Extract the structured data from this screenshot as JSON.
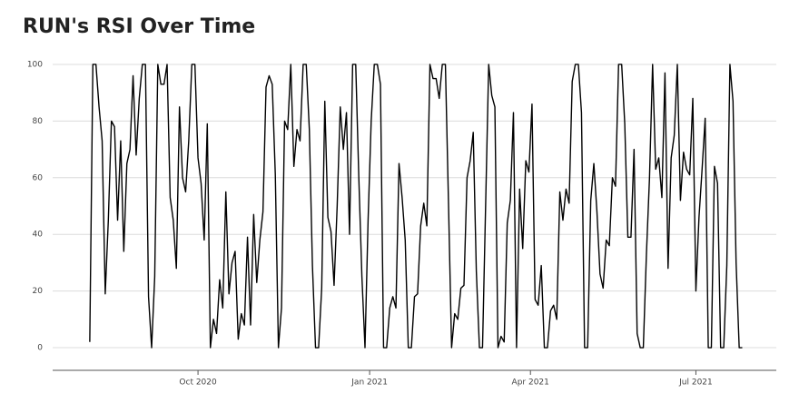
{
  "chart_data": {
    "type": "line",
    "title": "RUN's RSI Over Time",
    "values": [
      2,
      100,
      100,
      85,
      73,
      19,
      45,
      80,
      78,
      45,
      73,
      34,
      65,
      70,
      96,
      68,
      88,
      100,
      100,
      18,
      0,
      25,
      100,
      93,
      93,
      100,
      53,
      45,
      28,
      85,
      60,
      55,
      73,
      100,
      100,
      67,
      58,
      38,
      79,
      0,
      10,
      5,
      24,
      14,
      55,
      19,
      30,
      34,
      3,
      12,
      8,
      39,
      8,
      47,
      23,
      38,
      48,
      92,
      96,
      93,
      61,
      0,
      14,
      80,
      77,
      100,
      64,
      77,
      73,
      100,
      100,
      77,
      29,
      0,
      0,
      21,
      87,
      46,
      41,
      22,
      50,
      85,
      70,
      83,
      40,
      100,
      100,
      60,
      25,
      0,
      45,
      80,
      100,
      100,
      93,
      0,
      0,
      14,
      18,
      14,
      65,
      53,
      38,
      0,
      0,
      18,
      19,
      43,
      51,
      43,
      100,
      95,
      95,
      88,
      100,
      100,
      51,
      0,
      12,
      10,
      21,
      22,
      60,
      66,
      76,
      27,
      0,
      0,
      50,
      100,
      89,
      85,
      0,
      4,
      2,
      44,
      52,
      83,
      0,
      56,
      35,
      66,
      62,
      86,
      17,
      15,
      29,
      0,
      0,
      13,
      15,
      10,
      55,
      45,
      56,
      51,
      94,
      100,
      100,
      83,
      0,
      0,
      52,
      65,
      48,
      26,
      21,
      38,
      36,
      60,
      57,
      100,
      100,
      79,
      39,
      39,
      70,
      5,
      0,
      0,
      33,
      60,
      100,
      63,
      67,
      53,
      97,
      28,
      67,
      75,
      100,
      52,
      69,
      63,
      61,
      88,
      20,
      46,
      63,
      81,
      0,
      0,
      64,
      58,
      0,
      0,
      29,
      100,
      87,
      30,
      0,
      0
    ],
    "color": "#000000",
    "xlim": [
      -12,
      222
    ],
    "xticks": [
      {
        "value": 35,
        "label": "Oct 2020"
      },
      {
        "value": 90.5,
        "label": "Jan 2021"
      },
      {
        "value": 142.5,
        "label": "Apr 2021"
      },
      {
        "value": 196,
        "label": "Jul 2021"
      }
    ],
    "ylim": [
      -8,
      104
    ],
    "yticks": [
      0,
      20,
      40,
      60,
      80,
      100
    ],
    "grid": true
  }
}
